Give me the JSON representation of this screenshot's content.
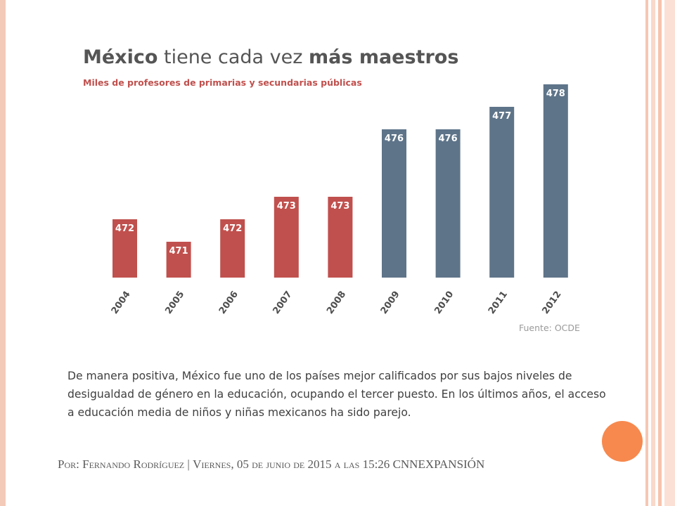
{
  "slide": {
    "source": "Fuente:  OCDE",
    "body_text": "De manera positiva, México fue uno de los países mejor calificados por sus bajos niveles de desigualdad de género en la educación, ocupando el tercer puesto. En los últimos años, el acceso a educación media de niños y niñas mexicanos ha sido parejo.",
    "footer": {
      "por": "Por: ",
      "author": "Fernando Rodríguez",
      "separator": " | ",
      "date": "Viernes, 05 de junio de 2015 a las 15:26 ",
      "outlet": "CNNEXPANSIÓN"
    },
    "colors": {
      "accent_red": "#c0504d",
      "accent_slate": "#5e7489",
      "circle": "#f7894e",
      "border": "#f3c9b8"
    }
  },
  "chart_data": {
    "type": "bar",
    "title_bold": "México",
    "title_mid": " tiene cada vez ",
    "title_bold2": "más maestros",
    "subtitle": "Miles de profesores de primarias y secundarias públicas",
    "categories": [
      "2004",
      "2005",
      "2006",
      "2007",
      "2008",
      "2009",
      "2010",
      "2011",
      "2012"
    ],
    "values": [
      472,
      471,
      472,
      473,
      473,
      476,
      476,
      477,
      478
    ],
    "bar_colors": [
      "#c0504d",
      "#c0504d",
      "#c0504d",
      "#c0504d",
      "#c0504d",
      "#5e7489",
      "#5e7489",
      "#5e7489",
      "#5e7489"
    ],
    "grid": false,
    "legend": "none"
  }
}
